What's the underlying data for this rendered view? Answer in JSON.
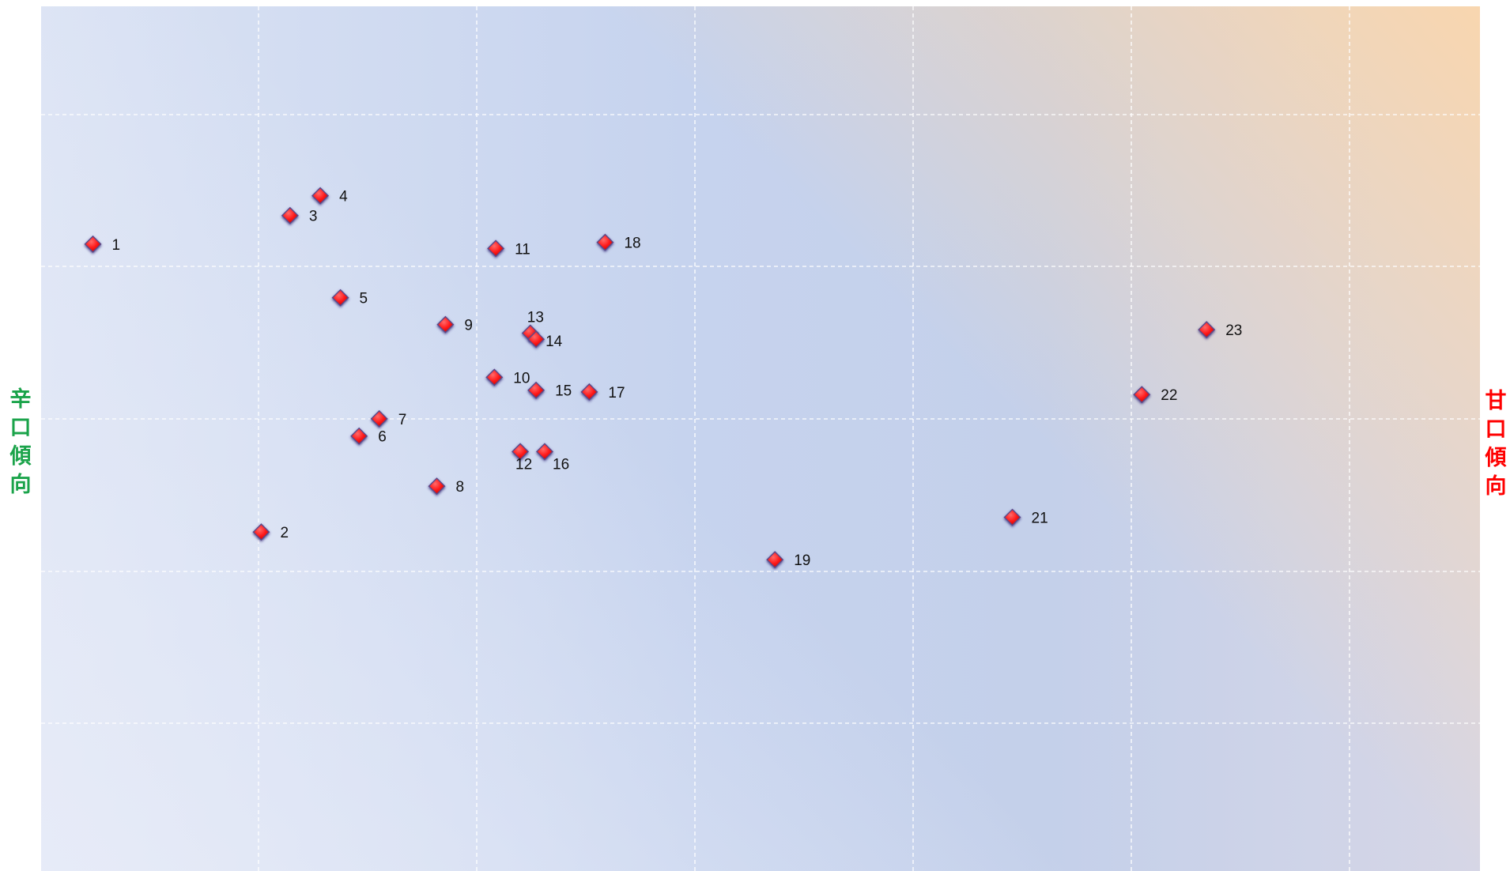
{
  "chart_data": {
    "type": "scatter",
    "title": "",
    "xlabel_left": "辛口傾向",
    "xlabel_right": "甘口傾向",
    "xlim": [
      0,
      100
    ],
    "ylim": [
      0,
      100
    ],
    "grid": true,
    "marker": "diamond",
    "colors": {
      "marker": "#ff1a1a",
      "marker_edge": "#5a4a8a",
      "left_label": "#1aa34a",
      "right_label": "#ff0000",
      "grid": "#ffffff"
    },
    "points": [
      {
        "label": "1",
        "x": 3.6,
        "y": 72.5
      },
      {
        "label": "2",
        "x": 15.3,
        "y": 39.2
      },
      {
        "label": "3",
        "x": 17.3,
        "y": 75.8
      },
      {
        "label": "4",
        "x": 19.4,
        "y": 78.1
      },
      {
        "label": "5",
        "x": 20.8,
        "y": 66.3
      },
      {
        "label": "6",
        "x": 22.1,
        "y": 50.3
      },
      {
        "label": "7",
        "x": 23.5,
        "y": 52.3
      },
      {
        "label": "8",
        "x": 27.5,
        "y": 44.5
      },
      {
        "label": "9",
        "x": 28.1,
        "y": 63.2
      },
      {
        "label": "10",
        "x": 31.5,
        "y": 57.1
      },
      {
        "label": "11",
        "x": 31.6,
        "y": 72.0
      },
      {
        "label": "12",
        "x": 33.3,
        "y": 48.5
      },
      {
        "label": "13",
        "x": 34.0,
        "y": 62.2
      },
      {
        "label": "14",
        "x": 34.4,
        "y": 61.5
      },
      {
        "label": "15",
        "x": 34.4,
        "y": 55.6
      },
      {
        "label": "16",
        "x": 35.0,
        "y": 48.5
      },
      {
        "label": "17",
        "x": 38.1,
        "y": 55.4
      },
      {
        "label": "18",
        "x": 39.2,
        "y": 72.7
      },
      {
        "label": "19",
        "x": 51.0,
        "y": 36.0
      },
      {
        "label": "21",
        "x": 67.5,
        "y": 40.9
      },
      {
        "label": "22",
        "x": 76.5,
        "y": 55.1
      },
      {
        "label": "23",
        "x": 81.0,
        "y": 62.6
      }
    ]
  }
}
